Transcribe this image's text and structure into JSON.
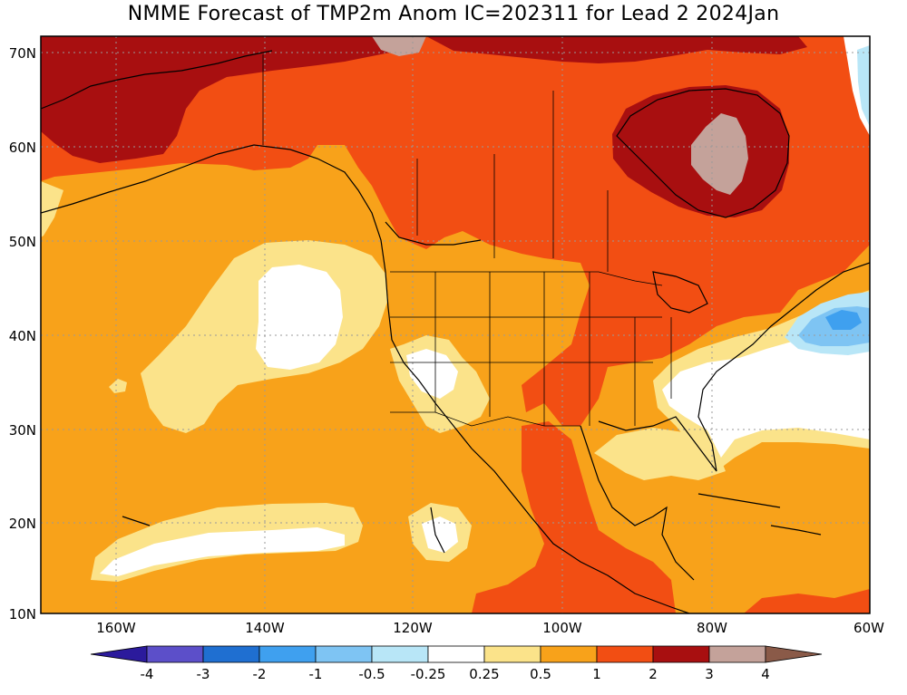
{
  "title": "NMME Forecast of TMP2m Anom IC=202311 for Lead 2 2024Jan",
  "lat_labels": [
    "70N",
    "60N",
    "50N",
    "40N",
    "30N",
    "20N",
    "10N"
  ],
  "lon_labels": [
    "160W",
    "140W",
    "120W",
    "100W",
    "80W",
    "60W"
  ],
  "colorbar": {
    "labels": [
      "-4",
      "-3",
      "-2",
      "-1",
      "-0.5",
      "-0.25",
      "0.25",
      "0.5",
      "1",
      "2",
      "3",
      "4"
    ],
    "colors": [
      "#2b1a9c",
      "#5c4fc9",
      "#1f6fd1",
      "#3fa0ef",
      "#7ec4f3",
      "#b8e6f7",
      "#ffffff",
      "#fbe38a",
      "#f8a21a",
      "#f24e13",
      "#a80f10",
      "#c4a29a",
      "#8a5a48"
    ]
  },
  "map_colors": {
    "white": "#ffffff",
    "light_yellow": "#fbe38a",
    "orange": "#f8a21a",
    "red_orange": "#f24e13",
    "dark_red": "#a80f10",
    "mauve": "#c4a29a",
    "light_blue": "#7ec4f3",
    "mid_blue": "#3fa0ef",
    "pale_blue": "#b8e6f7"
  }
}
